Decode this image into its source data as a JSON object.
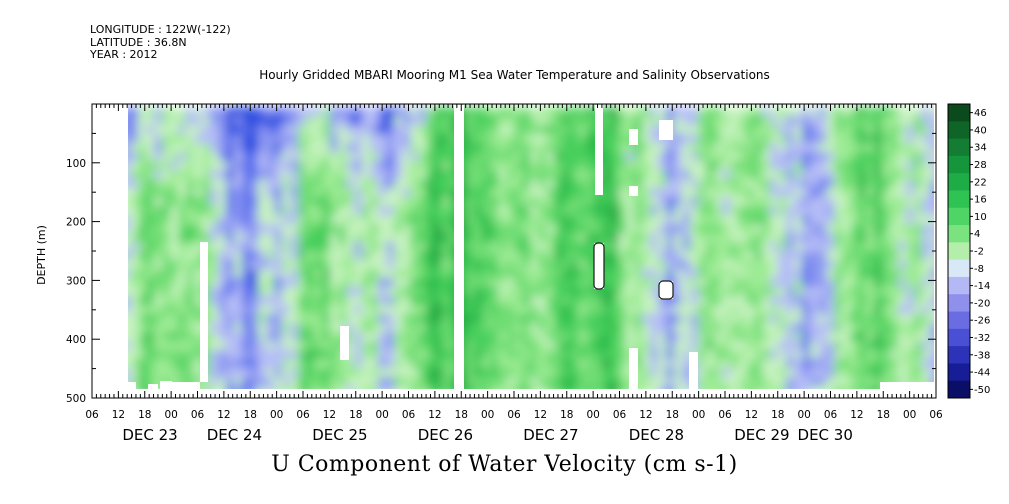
{
  "meta": {
    "longitude": "LONGITUDE : 122W(-122)",
    "latitude": "LATITUDE : 36.8N",
    "year": "YEAR : 2012"
  },
  "chart_data": {
    "type": "heatmap",
    "title": "Hourly Gridded MBARI Mooring M1 Sea Water Temperature and Salinity Observations",
    "xlabel": "U Component of Water Velocity (cm s-1)",
    "ylabel": "DEPTH (m)",
    "y_axis": {
      "reversed": true,
      "ylim": [
        500,
        0
      ],
      "ticks": [
        100,
        200,
        300,
        400,
        500
      ],
      "tick_labels": [
        "100",
        "200",
        "300",
        "400",
        "500"
      ]
    },
    "x_axis": {
      "hour_tick_labels": [
        "06",
        "12",
        "18",
        "00",
        "06",
        "12",
        "18",
        "00",
        "06",
        "12",
        "18",
        "00",
        "06",
        "12",
        "18",
        "00",
        "06",
        "12",
        "18",
        "00",
        "06",
        "12",
        "18",
        "00",
        "06",
        "12",
        "18",
        "00",
        "06",
        "12",
        "18",
        "00",
        "06"
      ],
      "day_labels": [
        "DEC 23",
        "DEC 24",
        "DEC 25",
        "DEC 26",
        "DEC 27",
        "DEC 28",
        "DEC 29",
        "DEC 30"
      ]
    },
    "colorbar": {
      "labels": [
        "46",
        "40",
        "34",
        "28",
        "22",
        "16",
        "10",
        "4",
        "-2",
        "-8",
        "-14",
        "-20",
        "-26",
        "-32",
        "-38",
        "-44",
        "-50"
      ],
      "colors": [
        "#0b4a1c",
        "#0f6427",
        "#137e33",
        "#16963c",
        "#1eac47",
        "#2fc353",
        "#4fd466",
        "#7ae37f",
        "#b3efaa",
        "#d8e8f6",
        "#b4b8f5",
        "#8e90ec",
        "#6a6de2",
        "#4a50d4",
        "#2d33b8",
        "#171d96",
        "#0a0e66"
      ]
    },
    "grid": false
  }
}
